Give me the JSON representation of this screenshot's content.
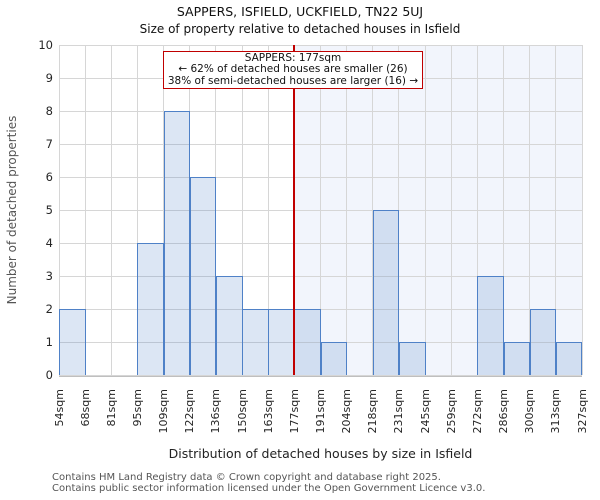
{
  "title": "SAPPERS, ISFIELD, UCKFIELD, TN22 5UJ",
  "subtitle": "Size of property relative to detached houses in Isfield",
  "annotation": {
    "line1": "SAPPERS: 177sqm",
    "line2": "← 62% of detached houses are smaller (26)",
    "line3": "38% of semi-detached houses are larger (16) →"
  },
  "chart_data": {
    "type": "bar",
    "title": "SAPPERS, ISFIELD, UCKFIELD, TN22 5UJ",
    "subtitle": "Size of property relative to detached houses in Isfield",
    "xlabel": "Distribution of detached houses by size in Isfield",
    "ylabel": "Number of detached properties",
    "categories": [
      "54sqm",
      "68sqm",
      "81sqm",
      "95sqm",
      "109sqm",
      "122sqm",
      "136sqm",
      "150sqm",
      "163sqm",
      "177sqm",
      "191sqm",
      "204sqm",
      "218sqm",
      "231sqm",
      "245sqm",
      "259sqm",
      "272sqm",
      "286sqm",
      "300sqm",
      "313sqm",
      "327sqm"
    ],
    "bin_edges_sqm": [
      54,
      68,
      81,
      95,
      109,
      122,
      136,
      150,
      163,
      177,
      191,
      204,
      218,
      231,
      245,
      259,
      272,
      286,
      300,
      313,
      327
    ],
    "values": [
      2,
      0,
      0,
      4,
      8,
      6,
      3,
      2,
      2,
      2,
      1,
      0,
      5,
      1,
      0,
      0,
      3,
      1,
      2,
      1
    ],
    "ylim": [
      0,
      10
    ],
    "yticks": [
      0,
      1,
      2,
      3,
      4,
      5,
      6,
      7,
      8,
      9,
      10
    ],
    "grid": true,
    "legend": false,
    "marker": {
      "label": "177sqm",
      "tick_index": 9
    },
    "colors": {
      "bar_fill": "rgba(79,129,199,0.2)",
      "bar_edge": "#4f81c7",
      "marker_line": "#c00000",
      "grid": "#d6d6d6",
      "region_bg": "#f2f5fc",
      "axis_line": "#bfbfbf"
    }
  },
  "footer": {
    "line1": "Contains HM Land Registry data © Crown copyright and database right 2025.",
    "line2": "Contains public sector information licensed under the Open Government Licence v3.0."
  }
}
